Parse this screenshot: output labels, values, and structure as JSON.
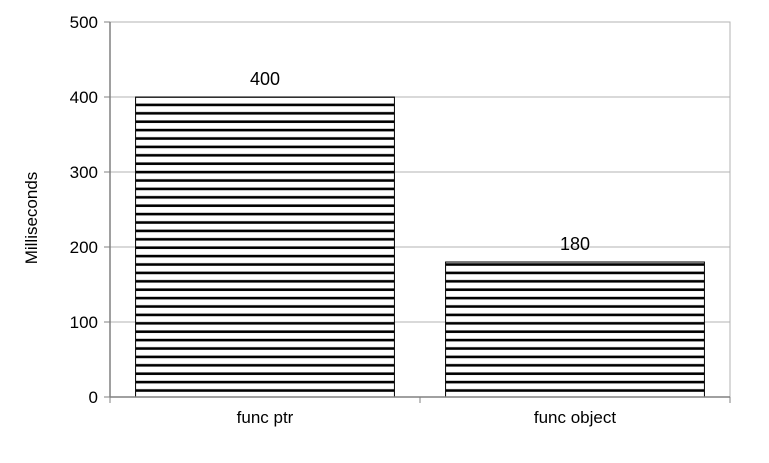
{
  "chart_data": {
    "type": "bar",
    "categories": [
      "func ptr",
      "func object"
    ],
    "values": [
      400,
      180
    ],
    "data_labels": [
      "400",
      "180"
    ],
    "ylabel": "Milliseconds",
    "xlabel": "",
    "title": "",
    "ylim": [
      0,
      500
    ],
    "yticks": [
      0,
      100,
      200,
      300,
      400,
      500
    ],
    "grid": true,
    "legend": "none",
    "bar_fill": "horizontal-stripes",
    "colors": {
      "bar_stripe": "#000000",
      "bar_bg": "#ffffff",
      "grid": "#b3b3b3",
      "axis": "#808080"
    }
  }
}
